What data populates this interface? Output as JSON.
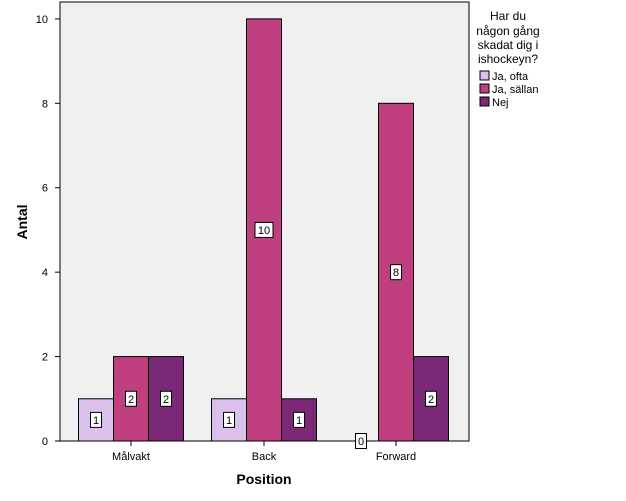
{
  "chart_data": {
    "type": "bar",
    "categories": [
      "Målvakt",
      "Back",
      "Forward"
    ],
    "series": [
      {
        "name": "Ja, ofta",
        "values": [
          1,
          1,
          0
        ],
        "color": "#dcc0ec"
      },
      {
        "name": "Ja, sällan",
        "values": [
          2,
          10,
          8
        ],
        "color": "#c03f7f"
      },
      {
        "name": "Nej",
        "values": [
          2,
          1,
          2
        ],
        "color": "#7b2876"
      }
    ],
    "xlabel": "Position",
    "ylabel": "Antal",
    "ylim": [
      0,
      10.4
    ],
    "yticks": [
      0,
      2,
      4,
      6,
      8,
      10
    ],
    "legend": {
      "title_lines": [
        "Har du",
        "någon gång",
        "skadat dig i",
        "ishockeyn?"
      ],
      "placement": "right"
    },
    "grid": false,
    "plot_background": "#f0f0f0",
    "data_labels": true
  }
}
